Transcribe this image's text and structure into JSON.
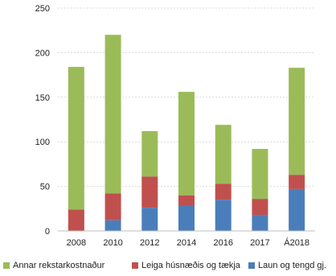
{
  "chart_data": {
    "type": "bar",
    "stacked": true,
    "categories": [
      "2008",
      "2010",
      "2012",
      "2014",
      "2016",
      "2017",
      "Á2018"
    ],
    "series": [
      {
        "name": "Laun og tengd gj.",
        "color": "#4a7ebb",
        "values": [
          0,
          12,
          26,
          28,
          35,
          18,
          47
        ]
      },
      {
        "name": "Leiga húsnæðis og tækja",
        "color": "#c0504d",
        "values": [
          24,
          30,
          35,
          12,
          18,
          18,
          16
        ]
      },
      {
        "name": "Annar rekstarkostnaður",
        "color": "#9bbb59",
        "values": [
          160,
          178,
          51,
          116,
          66,
          56,
          120
        ]
      }
    ],
    "legend_order": [
      2,
      1,
      0
    ],
    "ylim": [
      0,
      250
    ],
    "yticks": [
      "0",
      "50",
      "100",
      "150",
      "200",
      "250"
    ],
    "grid": true,
    "legend_position": "bottom",
    "title": "",
    "xlabel": "",
    "ylabel": ""
  }
}
